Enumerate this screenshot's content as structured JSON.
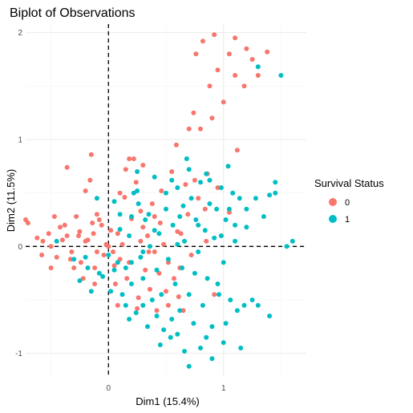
{
  "chart_data": {
    "type": "scatter",
    "title": "Biplot of Observations",
    "xlabel": "Dim1 (15.4%)",
    "ylabel": "Dim2 (11.5%)",
    "xlim": [
      -0.72,
      1.72
    ],
    "ylim": [
      -1.22,
      2.08
    ],
    "xticks": [
      0,
      1
    ],
    "xtick_labels": [
      "0",
      "1"
    ],
    "yticks": [
      -1,
      0,
      1,
      2
    ],
    "ytick_labels": [
      "-1",
      "0",
      "1",
      "2"
    ],
    "grid": true,
    "reference_lines": {
      "x": 0,
      "y": 0,
      "style": "dashed"
    },
    "legend": {
      "title": "Survival Status",
      "position": "right",
      "entries": [
        {
          "label": "0",
          "color": "#F8766D"
        },
        {
          "label": "1",
          "color": "#00BFC4"
        }
      ]
    },
    "series": [
      {
        "name": "0",
        "color": "#F8766D",
        "points": [
          [
            -0.72,
            0.25
          ],
          [
            -0.62,
            0.08
          ],
          [
            -0.57,
            0.05
          ],
          [
            -0.52,
            0.12
          ],
          [
            -0.5,
            0.0
          ],
          [
            -0.45,
            -0.1
          ],
          [
            -0.47,
            0.28
          ],
          [
            -0.42,
            0.18
          ],
          [
            -0.38,
            0.2
          ],
          [
            -0.36,
            0.1
          ],
          [
            -0.36,
            0.74
          ],
          [
            -0.33,
            -0.12
          ],
          [
            -0.32,
            -0.05
          ],
          [
            -0.3,
            -0.2
          ],
          [
            -0.26,
            0.1
          ],
          [
            -0.24,
            -0.15
          ],
          [
            -0.22,
            -0.3
          ],
          [
            -0.2,
            0.05
          ],
          [
            -0.18,
            0.06
          ],
          [
            -0.16,
            0.62
          ],
          [
            -0.14,
            0.22
          ],
          [
            -0.13,
            0.12
          ],
          [
            -0.12,
            -0.2
          ],
          [
            -0.1,
            -0.05
          ],
          [
            -0.1,
            0.3
          ],
          [
            -0.08,
            0.25
          ],
          [
            -0.06,
            0.2
          ],
          [
            -0.04,
            -0.08
          ],
          [
            -0.02,
            0.02
          ],
          [
            0.02,
            0.15
          ],
          [
            0.04,
            -0.05
          ],
          [
            0.06,
            -0.35
          ],
          [
            0.08,
            -0.55
          ],
          [
            0.08,
            0.12
          ],
          [
            0.1,
            -0.12
          ],
          [
            0.1,
            0.5
          ],
          [
            0.12,
            0.02
          ],
          [
            0.14,
            0.46
          ],
          [
            0.16,
            -0.3
          ],
          [
            0.18,
            -0.15
          ],
          [
            0.2,
            0.26
          ],
          [
            0.22,
            0.82
          ],
          [
            0.24,
            0.6
          ],
          [
            0.26,
            -0.48
          ],
          [
            0.28,
            0.33
          ],
          [
            0.3,
            0.18
          ],
          [
            0.32,
            -0.22
          ],
          [
            0.34,
            0.1
          ],
          [
            0.36,
            -0.4
          ],
          [
            0.38,
            0.4
          ],
          [
            0.4,
            -0.05
          ],
          [
            0.42,
            -0.6
          ],
          [
            0.44,
            -0.25
          ],
          [
            0.46,
            0.52
          ],
          [
            0.48,
            0.02
          ],
          [
            0.5,
            -0.42
          ],
          [
            0.52,
            -0.15
          ],
          [
            0.55,
            0.7
          ],
          [
            0.57,
            -0.3
          ],
          [
            0.59,
            0.95
          ],
          [
            0.61,
            -0.47
          ],
          [
            0.63,
            0.12
          ],
          [
            0.65,
            -0.6
          ],
          [
            0.67,
            0.58
          ],
          [
            0.69,
            0.3
          ],
          [
            0.72,
            -0.08
          ],
          [
            0.74,
            1.25
          ],
          [
            0.76,
            1.8
          ],
          [
            0.78,
            0.45
          ],
          [
            0.8,
            1.1
          ],
          [
            0.82,
            1.92
          ],
          [
            0.84,
            0.35
          ],
          [
            0.86,
            0.68
          ],
          [
            0.88,
            1.5
          ],
          [
            0.9,
            1.2
          ],
          [
            0.92,
            -0.45
          ],
          [
            0.95,
            1.65
          ],
          [
            0.98,
            0.1
          ],
          [
            1.0,
            1.35
          ],
          [
            1.05,
            1.8
          ],
          [
            1.1,
            1.6
          ],
          [
            1.12,
            0.9
          ],
          [
            1.18,
            1.5
          ],
          [
            1.2,
            1.85
          ],
          [
            1.25,
            1.75
          ],
          [
            1.3,
            1.6
          ],
          [
            1.38,
            1.82
          ],
          [
            -0.7,
            0.22
          ],
          [
            -0.58,
            -0.08
          ],
          [
            -0.4,
            0.06
          ],
          [
            -0.28,
            0.28
          ],
          [
            -0.2,
            0.52
          ],
          [
            -0.15,
            0.86
          ],
          [
            0.0,
            0.0
          ],
          [
            0.05,
            -0.18
          ],
          [
            0.15,
            0.72
          ],
          [
            0.3,
            0.76
          ],
          [
            0.45,
            0.22
          ],
          [
            0.6,
            0.14
          ],
          [
            0.7,
            1.1
          ],
          [
            0.85,
            0.05
          ],
          [
            0.95,
            0.55
          ],
          [
            1.05,
            0.32
          ],
          [
            -0.5,
            -0.2
          ],
          [
            -0.12,
            -0.35
          ],
          [
            -0.25,
            0.14
          ],
          [
            0.25,
            -0.58
          ],
          [
            0.35,
            -0.05
          ],
          [
            0.52,
            -0.55
          ],
          [
            0.18,
            0.82
          ],
          [
            0.28,
            0.05
          ],
          [
            0.4,
            0.28
          ],
          [
            0.62,
            -0.2
          ],
          [
            0.75,
            0.62
          ],
          [
            0.92,
            1.98
          ],
          [
            1.1,
            1.95
          ]
        ]
      },
      {
        "name": "1",
        "color": "#00BFC4",
        "points": [
          [
            -0.45,
            0.05
          ],
          [
            -0.3,
            -0.12
          ],
          [
            -0.25,
            -0.32
          ],
          [
            -0.18,
            -0.2
          ],
          [
            -0.15,
            -0.42
          ],
          [
            -0.1,
            0.45
          ],
          [
            -0.05,
            -0.28
          ],
          [
            0.0,
            -0.08
          ],
          [
            0.02,
            -0.42
          ],
          [
            0.05,
            0.42
          ],
          [
            0.08,
            -0.15
          ],
          [
            0.1,
            0.3
          ],
          [
            0.12,
            -0.45
          ],
          [
            0.15,
            -0.2
          ],
          [
            0.18,
            0.1
          ],
          [
            0.2,
            -0.35
          ],
          [
            0.22,
            0.5
          ],
          [
            0.24,
            -0.62
          ],
          [
            0.26,
            0.4
          ],
          [
            0.28,
            -0.1
          ],
          [
            0.3,
            -0.3
          ],
          [
            0.32,
            0.25
          ],
          [
            0.34,
            -0.75
          ],
          [
            0.36,
            0.0
          ],
          [
            0.38,
            -0.5
          ],
          [
            0.4,
            0.65
          ],
          [
            0.42,
            -0.22
          ],
          [
            0.44,
            0.12
          ],
          [
            0.46,
            -0.45
          ],
          [
            0.48,
            -0.78
          ],
          [
            0.5,
            0.35
          ],
          [
            0.52,
            -0.12
          ],
          [
            0.54,
            -0.85
          ],
          [
            0.56,
            0.2
          ],
          [
            0.58,
            -0.35
          ],
          [
            0.6,
            0.55
          ],
          [
            0.62,
            -0.6
          ],
          [
            0.64,
            -0.2
          ],
          [
            0.66,
            0.05
          ],
          [
            0.68,
            0.82
          ],
          [
            0.7,
            -0.45
          ],
          [
            0.72,
            0.45
          ],
          [
            0.74,
            -0.72
          ],
          [
            0.76,
            0.25
          ],
          [
            0.78,
            -0.05
          ],
          [
            0.8,
            0.6
          ],
          [
            0.82,
            -0.55
          ],
          [
            0.84,
            0.15
          ],
          [
            0.86,
            -0.3
          ],
          [
            0.88,
            0.4
          ],
          [
            0.9,
            -0.75
          ],
          [
            0.92,
            0.08
          ],
          [
            0.94,
            0.35
          ],
          [
            0.96,
            -0.45
          ],
          [
            0.98,
            0.55
          ],
          [
            1.0,
            -0.15
          ],
          [
            1.02,
            0.25
          ],
          [
            1.04,
            0.75
          ],
          [
            1.06,
            -0.5
          ],
          [
            1.08,
            0.5
          ],
          [
            1.1,
            0.2
          ],
          [
            1.12,
            -0.6
          ],
          [
            1.14,
            0.45
          ],
          [
            1.18,
            -0.55
          ],
          [
            1.2,
            0.35
          ],
          [
            1.25,
            -0.5
          ],
          [
            1.28,
            0.45
          ],
          [
            1.35,
            0.28
          ],
          [
            1.4,
            0.48
          ],
          [
            1.45,
            0.6
          ],
          [
            1.5,
            1.6
          ],
          [
            1.55,
            0.0
          ],
          [
            1.6,
            0.05
          ],
          [
            1.4,
            -0.65
          ],
          [
            1.3,
            -0.55
          ],
          [
            1.15,
            -0.95
          ],
          [
            1.0,
            -0.9
          ],
          [
            0.9,
            -1.05
          ],
          [
            0.7,
            -1.12
          ],
          [
            0.85,
            -0.85
          ],
          [
            0.6,
            -0.82
          ],
          [
            0.45,
            -0.92
          ],
          [
            0.66,
            -0.98
          ],
          [
            0.3,
            -0.55
          ],
          [
            0.18,
            -0.68
          ],
          [
            0.55,
            -0.68
          ],
          [
            0.25,
            0.52
          ],
          [
            0.6,
            0.02
          ],
          [
            0.88,
            0.62
          ],
          [
            1.05,
            0.35
          ],
          [
            1.3,
            1.68
          ],
          [
            0.2,
            0.28
          ],
          [
            0.05,
            -0.22
          ],
          [
            -0.08,
            -0.25
          ],
          [
            0.35,
            0.3
          ],
          [
            0.75,
            -0.25
          ],
          [
            0.95,
            -0.35
          ],
          [
            1.1,
            0.05
          ],
          [
            1.2,
            0.18
          ],
          [
            0.4,
            0.15
          ],
          [
            0.5,
            0.5
          ],
          [
            0.7,
            0.72
          ],
          [
            0.85,
            0.68
          ],
          [
            0.1,
            0.16
          ],
          [
            -0.2,
            -0.1
          ],
          [
            0.65,
            0.38
          ],
          [
            0.3,
            -0.05
          ],
          [
            0.15,
            -0.55
          ],
          [
            0.78,
            0.2
          ],
          [
            1.02,
            -0.72
          ],
          [
            0.55,
            0.62
          ],
          [
            0.42,
            -0.65
          ],
          [
            0.62,
            0.28
          ],
          [
            0.98,
            0.1
          ],
          [
            1.45,
            0.5
          ],
          [
            0.8,
            -0.95
          ],
          [
            0.2,
            -0.15
          ],
          [
            0.25,
            0.7
          ]
        ]
      }
    ]
  }
}
